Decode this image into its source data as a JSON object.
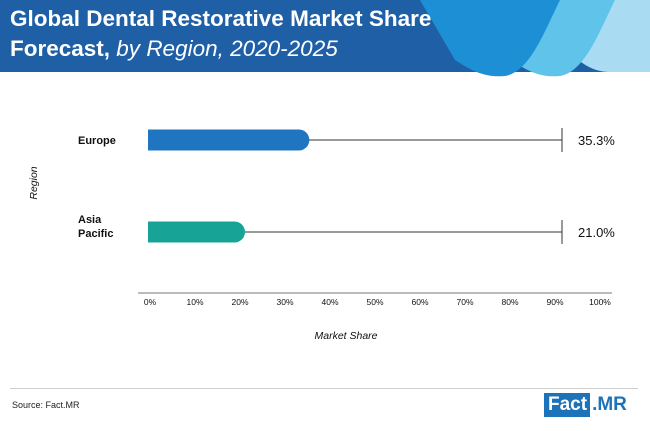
{
  "header": {
    "title_bold_1": "Global Dental Restorative Market Share",
    "title_bold_2": "Forecast,",
    "title_italic": " by Region, 2020-2025",
    "colors": {
      "bar": "#1f5fa6",
      "wave_mid": "#1d8fd4",
      "wave_light": "#5fc3ea",
      "wave_lightest": "#a9dcf2"
    }
  },
  "chart_data": {
    "type": "bar",
    "orientation": "horizontal",
    "categories": [
      "Europe",
      "Asia\nPacific"
    ],
    "values": [
      35.3,
      21.0
    ],
    "value_labels": [
      "35.3%",
      "21.0%"
    ],
    "bar_colors": [
      "#1f75c0",
      "#17a496"
    ],
    "title": "Global Dental Restorative Market Share Forecast, by Region, 2020-2025",
    "xlabel": "Market Share",
    "ylabel": "Region",
    "xlim": [
      0,
      100
    ],
    "x_ticks": [
      "0%",
      "10%",
      "20%",
      "30%",
      "40%",
      "50%",
      "60%",
      "70%",
      "80%",
      "90%",
      "100%"
    ],
    "grid": false,
    "legend": "none"
  },
  "footer": {
    "source": "Source: Fact.MR",
    "logo_left": "Fact",
    "logo_right": ".MR"
  }
}
